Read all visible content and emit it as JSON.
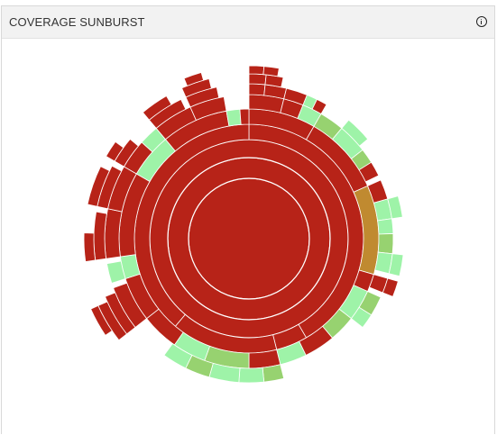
{
  "panel": {
    "title": "COVERAGE SUNBURST",
    "info_icon": "info-circle-icon"
  },
  "colors": {
    "uncovered": "#b72318",
    "partial": "#c08a30",
    "low": "#97d270",
    "high": "#9ef3a8",
    "separator": "#ffffff"
  },
  "chart_data": {
    "type": "sunburst",
    "title": "",
    "levels": [
      {
        "level": 0,
        "segments": [
          {
            "from": 0,
            "to": 360,
            "status": "uncovered"
          }
        ]
      },
      {
        "level": 1,
        "segments": [
          {
            "from": 0,
            "to": 360,
            "status": "uncovered"
          }
        ]
      },
      {
        "level": 2,
        "segments": [
          {
            "from": 0,
            "to": 360,
            "status": "uncovered"
          }
        ]
      },
      {
        "level": 3,
        "segments": [
          {
            "from": 0,
            "to": 150,
            "status": "uncovered"
          },
          {
            "from": 150,
            "to": 166,
            "status": "uncovered"
          },
          {
            "from": 166,
            "to": 220,
            "status": "uncovered"
          },
          {
            "from": 220,
            "to": 360,
            "status": "uncovered"
          }
        ]
      },
      {
        "level": 4,
        "segments": [
          {
            "from": 0,
            "to": 30,
            "status": "uncovered"
          },
          {
            "from": 30,
            "to": 66,
            "status": "uncovered"
          },
          {
            "from": 66,
            "to": 106,
            "status": "partial"
          },
          {
            "from": 106,
            "to": 114,
            "status": "uncovered"
          },
          {
            "from": 114,
            "to": 128,
            "status": "high"
          },
          {
            "from": 128,
            "to": 140,
            "status": "low"
          },
          {
            "from": 140,
            "to": 154,
            "status": "uncovered"
          },
          {
            "from": 154,
            "to": 166,
            "status": "high"
          },
          {
            "from": 166,
            "to": 180,
            "status": "uncovered"
          },
          {
            "from": 180,
            "to": 200,
            "status": "low"
          },
          {
            "from": 200,
            "to": 215,
            "status": "high"
          },
          {
            "from": 215,
            "to": 232,
            "status": "uncovered"
          },
          {
            "from": 232,
            "to": 252,
            "status": "uncovered"
          },
          {
            "from": 252,
            "to": 262,
            "status": "high"
          },
          {
            "from": 262,
            "to": 300,
            "status": "uncovered"
          },
          {
            "from": 300,
            "to": 320,
            "status": "high"
          },
          {
            "from": 320,
            "to": 350,
            "status": "uncovered"
          },
          {
            "from": 350,
            "to": 356,
            "status": "high"
          },
          {
            "from": 356,
            "to": 360,
            "status": "uncovered"
          }
        ]
      },
      {
        "level": 5,
        "segments": [
          {
            "from": 0,
            "to": 14,
            "status": "uncovered"
          },
          {
            "from": 14,
            "to": 22,
            "status": "uncovered"
          },
          {
            "from": 22,
            "to": 30,
            "status": "high"
          },
          {
            "from": 30,
            "to": 40,
            "status": "low"
          },
          {
            "from": 40,
            "to": 52,
            "status": "high"
          },
          {
            "from": 52,
            "to": 58,
            "status": "low"
          },
          {
            "from": 58,
            "to": 64,
            "status": "uncovered"
          },
          {
            "from": 66,
            "to": 74,
            "status": "uncovered"
          },
          {
            "from": 74,
            "to": 82,
            "status": "high"
          },
          {
            "from": 82,
            "to": 88,
            "status": "high"
          },
          {
            "from": 88,
            "to": 96,
            "status": "low"
          },
          {
            "from": 96,
            "to": 104,
            "status": "high"
          },
          {
            "from": 106,
            "to": 112,
            "status": "uncovered"
          },
          {
            "from": 114,
            "to": 122,
            "status": "low"
          },
          {
            "from": 122,
            "to": 128,
            "status": "high"
          },
          {
            "from": 166,
            "to": 174,
            "status": "low"
          },
          {
            "from": 174,
            "to": 184,
            "status": "high"
          },
          {
            "from": 184,
            "to": 196,
            "status": "high"
          },
          {
            "from": 196,
            "to": 206,
            "status": "low"
          },
          {
            "from": 206,
            "to": 216,
            "status": "high"
          },
          {
            "from": 232,
            "to": 250,
            "status": "uncovered"
          },
          {
            "from": 252,
            "to": 260,
            "status": "high"
          },
          {
            "from": 262,
            "to": 282,
            "status": "uncovered"
          },
          {
            "from": 282,
            "to": 300,
            "status": "uncovered"
          },
          {
            "from": 300,
            "to": 312,
            "status": "uncovered"
          },
          {
            "from": 312,
            "to": 320,
            "status": "high"
          },
          {
            "from": 320,
            "to": 336,
            "status": "uncovered"
          },
          {
            "from": 336,
            "to": 350,
            "status": "uncovered"
          }
        ]
      },
      {
        "level": 6,
        "segments": [
          {
            "from": 0,
            "to": 6,
            "status": "uncovered"
          },
          {
            "from": 6,
            "to": 14,
            "status": "uncovered"
          },
          {
            "from": 14,
            "to": 22,
            "status": "uncovered"
          },
          {
            "from": 22,
            "to": 26,
            "status": "high"
          },
          {
            "from": 26,
            "to": 30,
            "status": "uncovered"
          },
          {
            "from": 40,
            "to": 50,
            "status": "high"
          },
          {
            "from": 74,
            "to": 82,
            "status": "high"
          },
          {
            "from": 96,
            "to": 104,
            "status": "high"
          },
          {
            "from": 106,
            "to": 112,
            "status": "uncovered"
          },
          {
            "from": 232,
            "to": 248,
            "status": "uncovered"
          },
          {
            "from": 262,
            "to": 280,
            "status": "uncovered"
          },
          {
            "from": 282,
            "to": 298,
            "status": "uncovered"
          },
          {
            "from": 300,
            "to": 310,
            "status": "uncovered"
          },
          {
            "from": 320,
            "to": 334,
            "status": "uncovered"
          },
          {
            "from": 336,
            "to": 348,
            "status": "uncovered"
          }
        ]
      },
      {
        "level": 7,
        "segments": [
          {
            "from": 0,
            "to": 6,
            "status": "uncovered"
          },
          {
            "from": 6,
            "to": 12,
            "status": "uncovered"
          },
          {
            "from": 232,
            "to": 246,
            "status": "uncovered"
          },
          {
            "from": 262,
            "to": 272,
            "status": "uncovered"
          },
          {
            "from": 282,
            "to": 296,
            "status": "uncovered"
          },
          {
            "from": 300,
            "to": 306,
            "status": "uncovered"
          },
          {
            "from": 320,
            "to": 330,
            "status": "uncovered"
          },
          {
            "from": 336,
            "to": 346,
            "status": "uncovered"
          }
        ]
      },
      {
        "level": 8,
        "segments": [
          {
            "from": 0,
            "to": 5,
            "status": "uncovered"
          },
          {
            "from": 5,
            "to": 10,
            "status": "uncovered"
          },
          {
            "from": 236,
            "to": 246,
            "status": "uncovered"
          },
          {
            "from": 338,
            "to": 344,
            "status": "uncovered"
          }
        ]
      }
    ]
  }
}
